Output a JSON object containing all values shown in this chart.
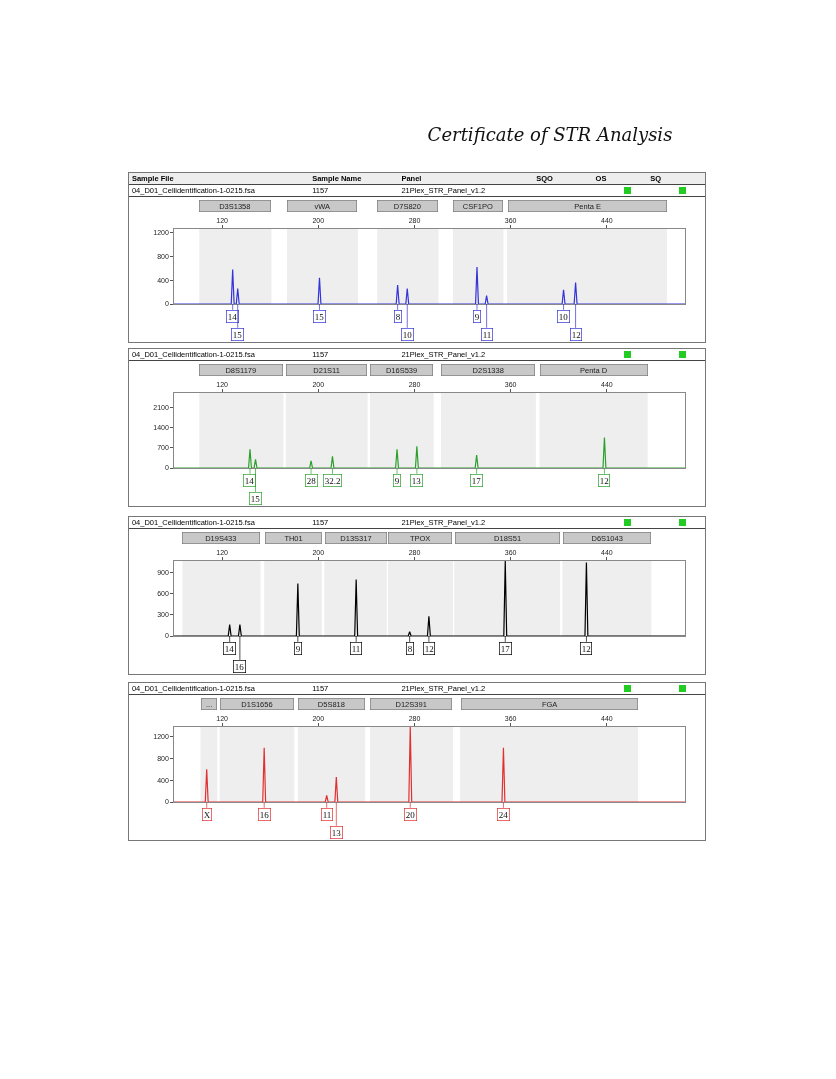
{
  "chart_data": [
    {
      "type": "line",
      "title": "Certificate of STR Analysis",
      "annotations": [
        "Sample File",
        "Sample Name",
        "Panel",
        "SQO",
        "OS",
        "SQ",
        "04_D01_Cellidentification-1-0215.fsa",
        "1157",
        "21Plex_STR_Panel_v1.2",
        {
          "text": "14",
          "x": 128.8,
          "y": 0
        },
        {
          "text": "15",
          "x": 133,
          "y": 0
        },
        {
          "text": "15",
          "x": 201,
          "y": 0
        },
        {
          "text": "8",
          "x": 266,
          "y": 0
        },
        {
          "text": "10",
          "x": 274,
          "y": 0
        },
        {
          "text": "9",
          "x": 332,
          "y": 0
        },
        {
          "text": "11",
          "x": 340,
          "y": 0
        },
        {
          "text": "10",
          "x": 404,
          "y": 0
        },
        {
          "text": "12",
          "x": 414,
          "y": 0
        }
      ],
      "x": [
        80,
        127.6,
        128.8,
        130,
        131.8,
        133,
        134.2,
        199.8,
        201,
        202.2,
        264.8,
        266,
        267.2,
        272.8,
        274,
        275.2,
        330.8,
        332,
        333.2,
        338.8,
        340,
        341.2,
        402.8,
        404,
        405.2,
        412.8,
        414,
        415.2,
        505
      ],
      "series": [
        {
          "color": "#3434d8",
          "values": [
            0,
            0,
            580,
            0,
            0,
            260,
            0,
            0,
            440,
            0,
            0,
            320,
            0,
            0,
            260,
            0,
            0,
            620,
            0,
            0,
            140,
            0,
            0,
            240,
            0,
            0,
            360,
            0,
            0
          ]
        }
      ],
      "bands": [
        {
          "axis": "x",
          "from": 101,
          "to": 161,
          "label": "D3S1358",
          "color": "#c8c8c8"
        },
        {
          "axis": "x",
          "from": 174,
          "to": 233,
          "label": "vWA",
          "color": "#c8c8c8"
        },
        {
          "axis": "x",
          "from": 249,
          "to": 300,
          "label": "D7S820",
          "color": "#c8c8c8"
        },
        {
          "axis": "x",
          "from": 312,
          "to": 354,
          "label": "CSF1PO",
          "color": "#c8c8c8"
        },
        {
          "axis": "x",
          "from": 357,
          "to": 490,
          "label": "Penta E",
          "color": "#c8c8c8"
        }
      ],
      "xlim": [
        80,
        505
      ],
      "xticks": [
        120,
        200,
        280,
        360,
        440
      ],
      "ylim": [
        0,
        1260
      ],
      "yticks": [
        0,
        400,
        800,
        1200
      ]
    },
    {
      "type": "line",
      "annotations": [
        "04_D01_Cellidentification-1-0215.fsa",
        "1157",
        "21Plex_STR_Panel_v1.2",
        {
          "text": "14",
          "x": 143.2,
          "y": 0
        },
        {
          "text": "15",
          "x": 147.8,
          "y": 0
        },
        {
          "text": "28",
          "x": 194,
          "y": 0
        },
        {
          "text": "32.2",
          "x": 211.8,
          "y": 0
        },
        {
          "text": "9",
          "x": 265.5,
          "y": 0
        },
        {
          "text": "13",
          "x": 282,
          "y": 0
        },
        {
          "text": "17",
          "x": 331.7,
          "y": 0
        },
        {
          "text": "12",
          "x": 438,
          "y": 0
        }
      ],
      "x": [
        80,
        142,
        143.2,
        144.4,
        146.6,
        147.8,
        149,
        192.8,
        194,
        195.2,
        210.6,
        211.8,
        213,
        264.3,
        265.5,
        266.7,
        280.8,
        282,
        283.2,
        330.5,
        331.7,
        332.9,
        436.8,
        438,
        439.2,
        505
      ],
      "series": [
        {
          "color": "#2ca02c",
          "values": [
            0,
            0,
            650,
            0,
            0,
            300,
            0,
            0,
            250,
            0,
            0,
            400,
            0,
            0,
            650,
            0,
            0,
            750,
            0,
            0,
            450,
            0,
            0,
            1050,
            0,
            0
          ]
        }
      ],
      "bands": [
        {
          "axis": "x",
          "from": 101,
          "to": 171,
          "label": "D8S1179",
          "color": "#c8c8c8"
        },
        {
          "axis": "x",
          "from": 173,
          "to": 241,
          "label": "D21S11",
          "color": "#c8c8c8"
        },
        {
          "axis": "x",
          "from": 243,
          "to": 296,
          "label": "D16S539",
          "color": "#c8c8c8"
        },
        {
          "axis": "x",
          "from": 302,
          "to": 381,
          "label": "D2S1338",
          "color": "#c8c8c8"
        },
        {
          "axis": "x",
          "from": 384,
          "to": 474,
          "label": "Penta D",
          "color": "#c8c8c8"
        }
      ],
      "xlim": [
        80,
        505
      ],
      "xticks": [
        120,
        200,
        280,
        360,
        440
      ],
      "ylim": [
        0,
        2590
      ],
      "yticks": [
        0,
        700,
        1400,
        2100
      ]
    },
    {
      "type": "line",
      "annotations": [
        "04_D01_Cellidentification-1-0215.fsa",
        "1157",
        "21Plex_STR_Panel_v1.2",
        {
          "text": "14",
          "x": 126.3,
          "y": 0
        },
        {
          "text": "16",
          "x": 134.8,
          "y": 0
        },
        {
          "text": "9",
          "x": 183,
          "y": 0
        },
        {
          "text": "11",
          "x": 231.5,
          "y": 0
        },
        {
          "text": "8",
          "x": 276,
          "y": 0
        },
        {
          "text": "12",
          "x": 292,
          "y": 0
        },
        {
          "text": "17",
          "x": 355.5,
          "y": 0
        },
        {
          "text": "12",
          "x": 423,
          "y": 0
        }
      ],
      "x": [
        80,
        125.1,
        126.3,
        127.5,
        133.6,
        134.8,
        136,
        181.8,
        183,
        184.2,
        230.3,
        231.5,
        232.7,
        274.8,
        276,
        277.2,
        290.8,
        292,
        293.2,
        354.3,
        355.5,
        356.7,
        421.8,
        423,
        424.2,
        505
      ],
      "series": [
        {
          "color": "#000000",
          "values": [
            0,
            0,
            160,
            0,
            0,
            160,
            0,
            0,
            740,
            0,
            0,
            800,
            0,
            0,
            60,
            0,
            0,
            280,
            0,
            0,
            1060,
            0,
            0,
            1040,
            0,
            0
          ]
        }
      ],
      "bands": [
        {
          "axis": "x",
          "from": 87,
          "to": 152,
          "label": "D19S433",
          "color": "#c8c8c8"
        },
        {
          "axis": "x",
          "from": 155,
          "to": 203,
          "label": "TH01",
          "color": "#c8c8c8"
        },
        {
          "axis": "x",
          "from": 205,
          "to": 257,
          "label": "D13S317",
          "color": "#c8c8c8"
        },
        {
          "axis": "x",
          "from": 258,
          "to": 312,
          "label": "TPOX",
          "color": "#c8c8c8"
        },
        {
          "axis": "x",
          "from": 313,
          "to": 401,
          "label": "D18S51",
          "color": "#c8c8c8"
        },
        {
          "axis": "x",
          "from": 403,
          "to": 477,
          "label": "D6S1043",
          "color": "#c8c8c8"
        }
      ],
      "xlim": [
        80,
        505
      ],
      "xticks": [
        120,
        200,
        280,
        360,
        440
      ],
      "ylim": [
        0,
        1060
      ],
      "yticks": [
        0,
        300,
        600,
        900
      ]
    },
    {
      "type": "line",
      "annotations": [
        "04_D01_Cellidentification-1-0215.fsa",
        "1157",
        "21Plex_STR_Panel_v1.2",
        {
          "text": "X",
          "x": 107.2,
          "y": 0
        },
        {
          "text": "16",
          "x": 155,
          "y": 0
        },
        {
          "text": "11",
          "x": 207,
          "y": 0
        },
        {
          "text": "13",
          "x": 215,
          "y": 0
        },
        {
          "text": "20",
          "x": 276.5,
          "y": 0
        },
        {
          "text": "24",
          "x": 354,
          "y": 0
        }
      ],
      "x": [
        80,
        106,
        107.2,
        108.4,
        153.8,
        155,
        156.2,
        205.8,
        207,
        208.2,
        213.8,
        215,
        216.2,
        275.3,
        276.5,
        277.7,
        352.8,
        354,
        355.2,
        505
      ],
      "series": [
        {
          "color": "#e03030",
          "values": [
            0,
            0,
            600,
            0,
            0,
            1000,
            0,
            0,
            120,
            0,
            0,
            460,
            0,
            0,
            1380,
            0,
            0,
            1000,
            0,
            0
          ]
        }
      ],
      "bands": [
        {
          "axis": "x",
          "from": 102,
          "to": 116,
          "label": "...",
          "color": "#c8c8c8"
        },
        {
          "axis": "x",
          "from": 118,
          "to": 180,
          "label": "D1S1656",
          "color": "#c8c8c8"
        },
        {
          "axis": "x",
          "from": 183,
          "to": 239,
          "label": "D5S818",
          "color": "#c8c8c8"
        },
        {
          "axis": "x",
          "from": 243,
          "to": 312,
          "label": "D12S391",
          "color": "#c8c8c8"
        },
        {
          "axis": "x",
          "from": 318,
          "to": 466,
          "label": "FGA",
          "color": "#c8c8c8"
        }
      ],
      "xlim": [
        80,
        505
      ],
      "xticks": [
        120,
        200,
        280,
        360,
        440
      ],
      "ylim": [
        0,
        1380
      ],
      "yticks": [
        0,
        400,
        800,
        1200
      ]
    }
  ]
}
